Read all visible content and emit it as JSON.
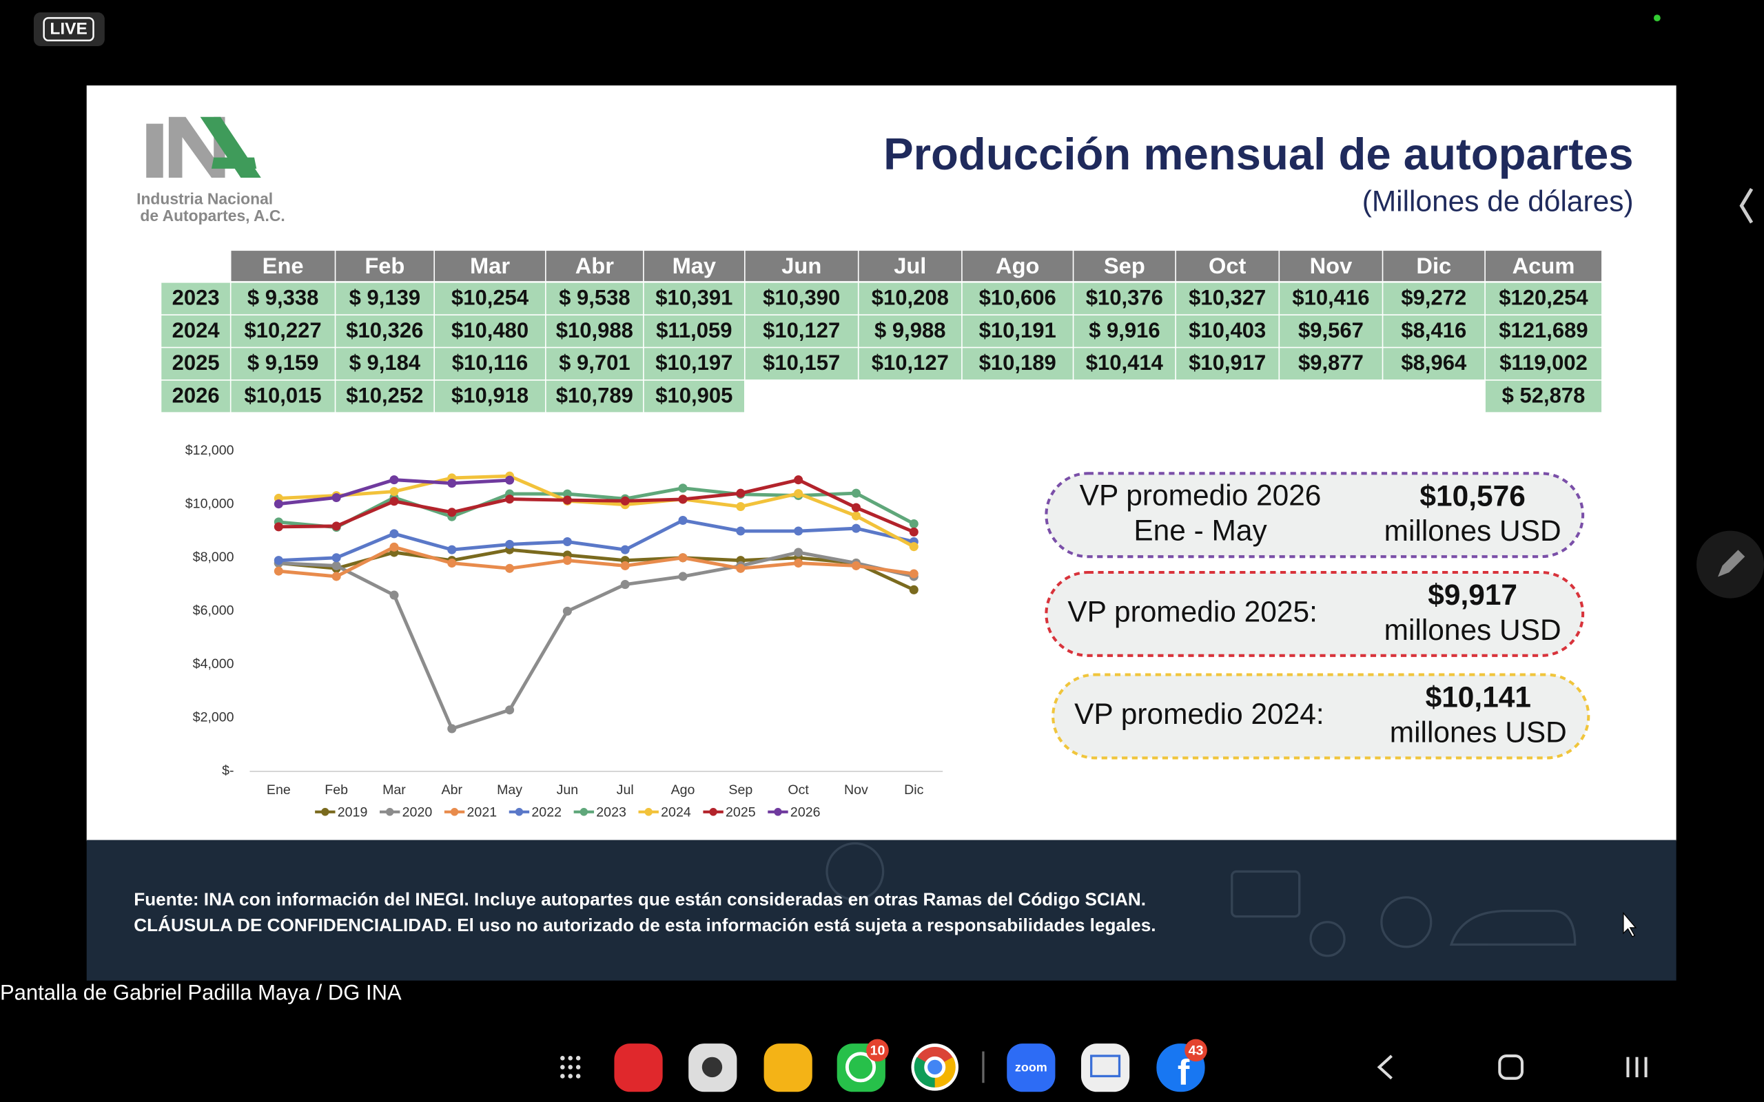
{
  "live_badge": "LIVE",
  "slide": {
    "logo": {
      "mark": "INA",
      "lines": [
        "Industria Nacional",
        "de Autopartes, A.C."
      ]
    },
    "title": "Producción mensual de autopartes",
    "subtitle": "(Millones de dólares)",
    "table": {
      "columns": [
        "Ene",
        "Feb",
        "Mar",
        "Abr",
        "May",
        "Jun",
        "Jul",
        "Ago",
        "Sep",
        "Oct",
        "Nov",
        "Dic",
        "Acum"
      ],
      "rows": [
        {
          "year": "2023",
          "months": [
            "$ 9,338",
            "$ 9,139",
            "$10,254",
            "$ 9,538",
            "$10,391",
            "$10,390",
            "$10,208",
            "$10,606",
            "$10,376",
            "$10,327",
            "$10,416",
            "$9,272"
          ],
          "acum": "$120,254"
        },
        {
          "year": "2024",
          "months": [
            "$10,227",
            "$10,326",
            "$10,480",
            "$10,988",
            "$11,059",
            "$10,127",
            "$ 9,988",
            "$10,191",
            "$ 9,916",
            "$10,403",
            "$9,567",
            "$8,416"
          ],
          "acum": "$121,689"
        },
        {
          "year": "2025",
          "months": [
            "$ 9,159",
            "$ 9,184",
            "$10,116",
            "$ 9,701",
            "$10,197",
            "$10,157",
            "$10,127",
            "$10,189",
            "$10,414",
            "$10,917",
            "$9,877",
            "$8,964"
          ],
          "acum": "$119,002"
        },
        {
          "year": "2026",
          "months": [
            "$10,015",
            "$10,252",
            "$10,918",
            "$10,789",
            "$10,905"
          ],
          "acum": "$ 52,878"
        }
      ]
    },
    "callouts": [
      {
        "label_lines": [
          "VP promedio 2026",
          "Ene - May"
        ],
        "value": "$10,576",
        "unit": "millones USD",
        "color": "#7a4fa8"
      },
      {
        "label_lines": [
          "VP promedio 2025:"
        ],
        "value": "$9,917",
        "unit": "millones USD",
        "color": "#d8333b"
      },
      {
        "label_lines": [
          "VP promedio 2024:"
        ],
        "value": "$10,141",
        "unit": "millones USD",
        "color": "#f0c53c"
      }
    ],
    "footer": [
      "Fuente: INA con información del INEGI. Incluye autopartes que están consideradas en otras Ramas del Código SCIAN.",
      "CLÁUSULA DE  CONFIDENCIALIDAD. El uso no autorizado de esta información está sujeta a responsabilidades legales."
    ]
  },
  "chart_data": {
    "type": "line",
    "categories": [
      "Ene",
      "Feb",
      "Mar",
      "Abr",
      "May",
      "Jun",
      "Jul",
      "Ago",
      "Sep",
      "Oct",
      "Nov",
      "Dic"
    ],
    "ylim": [
      0,
      12000
    ],
    "yticks": [
      {
        "value": 0,
        "label": "$-"
      },
      {
        "value": 2000,
        "label": "$2,000"
      },
      {
        "value": 4000,
        "label": "$4,000"
      },
      {
        "value": 6000,
        "label": "$6,000"
      },
      {
        "value": 8000,
        "label": "$8,000"
      },
      {
        "value": 10000,
        "label": "$10,000"
      },
      {
        "value": 12000,
        "label": "$12,000"
      }
    ],
    "grid": false,
    "legend": "bottom",
    "series": [
      {
        "name": "2019",
        "color": "#7a6a1e",
        "values": [
          7800,
          7600,
          8200,
          7900,
          8300,
          8100,
          7900,
          8000,
          7900,
          8000,
          7800,
          6800
        ]
      },
      {
        "name": "2020",
        "color": "#8c8c8c",
        "values": [
          7800,
          7700,
          6600,
          1600,
          2300,
          6000,
          7000,
          7300,
          7700,
          8200,
          7800,
          7300
        ]
      },
      {
        "name": "2021",
        "color": "#e88b4c",
        "values": [
          7500,
          7300,
          8400,
          7800,
          7600,
          7900,
          7700,
          8000,
          7600,
          7800,
          7700,
          7400
        ]
      },
      {
        "name": "2022",
        "color": "#5a78c8",
        "values": [
          7900,
          8000,
          8900,
          8300,
          8500,
          8600,
          8300,
          9400,
          9000,
          9000,
          9100,
          8600
        ]
      },
      {
        "name": "2023",
        "color": "#5fa77a",
        "values": [
          9338,
          9139,
          10254,
          9538,
          10391,
          10390,
          10208,
          10606,
          10376,
          10327,
          10416,
          9272
        ]
      },
      {
        "name": "2024",
        "color": "#f2c23a",
        "values": [
          10227,
          10326,
          10480,
          10988,
          11059,
          10127,
          9988,
          10191,
          9916,
          10403,
          9567,
          8416
        ]
      },
      {
        "name": "2025",
        "color": "#b3232b",
        "values": [
          9159,
          9184,
          10116,
          9701,
          10197,
          10157,
          10127,
          10189,
          10414,
          10917,
          9877,
          8964
        ]
      },
      {
        "name": "2026",
        "color": "#6f3a9e",
        "values": [
          10015,
          10252,
          10918,
          10789,
          10905,
          null,
          null,
          null,
          null,
          null,
          null,
          null
        ]
      }
    ]
  },
  "screen_share_label": "Pantalla de Gabriel Padilla Maya / DG INA",
  "taskbar": {
    "badges": [
      "10",
      "43"
    ]
  }
}
